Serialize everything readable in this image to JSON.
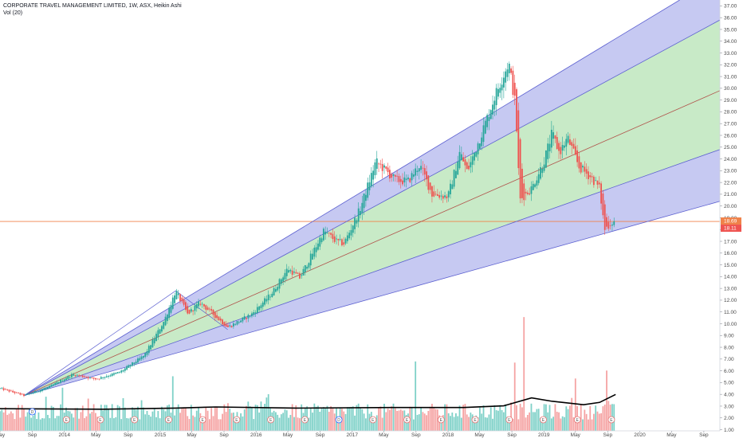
{
  "legend": {
    "title": "CORPORATE TRAVEL MANAGEMENT LIMITED, 1W, ASX, Heikin Ashi",
    "indicator": "Vol (20)"
  },
  "colors": {
    "up": "#26a69a",
    "down": "#ef5350",
    "outer_band": "#b3b7ee",
    "inner_band": "#c8ecc4",
    "fan_line": "#5b5fd0",
    "median_line": "#b0524a",
    "price_line": "#f0824a",
    "volume_up": "#7fd1c8",
    "volume_down": "#f5a3a3",
    "volume_ma": "#000000"
  },
  "price_tags": {
    "last": "18.69",
    "close": "18.11"
  },
  "event_markers": [
    "D",
    "E",
    "E",
    "E",
    "E",
    "E",
    "E",
    "E",
    "E",
    "D",
    "E",
    "E",
    "E",
    "E",
    "E",
    "E",
    "E",
    "E"
  ],
  "chart_data": {
    "type": "candlestick",
    "title": "CORPORATE TRAVEL MANAGEMENT LIMITED, 1W, ASX, Heikin Ashi",
    "x_axis": {
      "type": "date",
      "range": [
        "2013-05-01",
        "2020-11-01"
      ],
      "tick_labels": [
        "May",
        "Sep",
        "2014",
        "May",
        "Sep",
        "2015",
        "May",
        "Sep",
        "2016",
        "May",
        "Sep",
        "2017",
        "May",
        "Sep",
        "2018",
        "May",
        "Sep",
        "2019",
        "May",
        "Sep",
        "2020",
        "May",
        "Sep"
      ],
      "tick_dates": [
        "2013-05-01",
        "2013-09-01",
        "2014-01-01",
        "2014-05-01",
        "2014-09-01",
        "2015-01-01",
        "2015-05-01",
        "2015-09-01",
        "2016-01-01",
        "2016-05-01",
        "2016-09-01",
        "2017-01-01",
        "2017-05-01",
        "2017-09-01",
        "2018-01-01",
        "2018-05-01",
        "2018-09-01",
        "2019-01-01",
        "2019-05-01",
        "2019-09-01",
        "2020-01-01",
        "2020-05-01",
        "2020-09-01"
      ]
    },
    "y_axis": {
      "range": [
        0.9,
        37.5
      ],
      "tick_labels": [
        "1.00",
        "2.00",
        "3.00",
        "4.00",
        "5.00",
        "6.00",
        "7.00",
        "8.00",
        "9.00",
        "10.00",
        "11.00",
        "12.00",
        "13.00",
        "14.00",
        "15.00",
        "16.00",
        "17.00",
        "18.00",
        "19.00",
        "20.00",
        "21.00",
        "22.00",
        "23.00",
        "24.00",
        "25.00",
        "26.00",
        "27.00",
        "28.00",
        "29.00",
        "30.00",
        "31.00",
        "32.00",
        "33.00",
        "34.00",
        "35.00",
        "36.00",
        "37.00"
      ],
      "tick_values": [
        1,
        2,
        3,
        4,
        5,
        6,
        7,
        8,
        9,
        10,
        11,
        12,
        13,
        14,
        15,
        16,
        17,
        18,
        19,
        20,
        21,
        22,
        23,
        24,
        25,
        26,
        27,
        28,
        29,
        30,
        31,
        32,
        33,
        34,
        35,
        36,
        37
      ]
    },
    "price_path": [
      {
        "date": "2013-05-01",
        "price": 4.5
      },
      {
        "date": "2013-08-01",
        "price": 3.9
      },
      {
        "date": "2013-11-01",
        "price": 4.6
      },
      {
        "date": "2014-02-01",
        "price": 5.7
      },
      {
        "date": "2014-05-01",
        "price": 5.3
      },
      {
        "date": "2014-08-01",
        "price": 5.9
      },
      {
        "date": "2014-11-01",
        "price": 7.3
      },
      {
        "date": "2015-01-15",
        "price": 10.2
      },
      {
        "date": "2015-03-01",
        "price": 12.8
      },
      {
        "date": "2015-04-15",
        "price": 10.8
      },
      {
        "date": "2015-06-01",
        "price": 11.8
      },
      {
        "date": "2015-09-15",
        "price": 9.7
      },
      {
        "date": "2015-12-15",
        "price": 10.8
      },
      {
        "date": "2016-03-01",
        "price": 12.6
      },
      {
        "date": "2016-05-01",
        "price": 14.7
      },
      {
        "date": "2016-06-15",
        "price": 13.9
      },
      {
        "date": "2016-08-01",
        "price": 15.9
      },
      {
        "date": "2016-09-15",
        "price": 17.9
      },
      {
        "date": "2016-11-01",
        "price": 17.0
      },
      {
        "date": "2016-12-01",
        "price": 16.8
      },
      {
        "date": "2017-02-01",
        "price": 19.8
      },
      {
        "date": "2017-04-01",
        "price": 23.8
      },
      {
        "date": "2017-06-15",
        "price": 22.2
      },
      {
        "date": "2017-08-01",
        "price": 22.1
      },
      {
        "date": "2017-09-15",
        "price": 23.5
      },
      {
        "date": "2017-11-01",
        "price": 21.0
      },
      {
        "date": "2018-01-01",
        "price": 20.8
      },
      {
        "date": "2018-02-15",
        "price": 24.6
      },
      {
        "date": "2018-03-15",
        "price": 22.9
      },
      {
        "date": "2018-05-01",
        "price": 25.7
      },
      {
        "date": "2018-07-01",
        "price": 29.5
      },
      {
        "date": "2018-08-20",
        "price": 32.2
      },
      {
        "date": "2018-09-15",
        "price": 28.5
      },
      {
        "date": "2018-10-01",
        "price": 20.5
      },
      {
        "date": "2018-11-15",
        "price": 21.5
      },
      {
        "date": "2019-01-01",
        "price": 23.8
      },
      {
        "date": "2019-02-01",
        "price": 26.2
      },
      {
        "date": "2019-03-01",
        "price": 24.5
      },
      {
        "date": "2019-04-01",
        "price": 25.8
      },
      {
        "date": "2019-05-15",
        "price": 23.3
      },
      {
        "date": "2019-07-01",
        "price": 22.4
      },
      {
        "date": "2019-08-01",
        "price": 21.5
      },
      {
        "date": "2019-08-20",
        "price": 18.0
      },
      {
        "date": "2019-09-15",
        "price": 18.6
      },
      {
        "date": "2019-10-01",
        "price": 18.7
      }
    ],
    "gann_fan": {
      "origin": {
        "date": "2013-08-01",
        "price": 3.9
      },
      "lines": [
        {
          "role": "outer-upper",
          "end": {
            "date": "2020-06-01",
            "price": 37.5
          }
        },
        {
          "role": "inner-upper",
          "end": {
            "date": "2020-11-01",
            "price": 35.8
          }
        },
        {
          "role": "median",
          "end": {
            "date": "2020-11-01",
            "price": 29.8
          }
        },
        {
          "role": "inner-lower",
          "end": {
            "date": "2020-11-01",
            "price": 24.8
          }
        },
        {
          "role": "outer-lower",
          "end": {
            "date": "2020-11-01",
            "price": 20.4
          }
        }
      ]
    },
    "pivot_path": [
      {
        "date": "2013-08-01",
        "price": 3.9
      },
      {
        "date": "2015-03-01",
        "price": 12.8
      },
      {
        "date": "2015-09-15",
        "price": 9.5
      }
    ],
    "horizontal_line": {
      "price": 18.69
    },
    "volume": {
      "label": "Vol (20)",
      "scale_max": 10.5,
      "base": 1.0,
      "ma_path": [
        {
          "date": "2013-05-01",
          "value": 1.95
        },
        {
          "date": "2014-06-01",
          "value": 1.9
        },
        {
          "date": "2015-03-01",
          "value": 2.0
        },
        {
          "date": "2015-08-01",
          "value": 2.1
        },
        {
          "date": "2016-06-01",
          "value": 2.0
        },
        {
          "date": "2017-06-01",
          "value": 2.05
        },
        {
          "date": "2018-03-01",
          "value": 2.05
        },
        {
          "date": "2018-08-01",
          "value": 2.2
        },
        {
          "date": "2018-11-15",
          "value": 2.9
        },
        {
          "date": "2019-02-01",
          "value": 2.6
        },
        {
          "date": "2019-06-01",
          "value": 2.3
        },
        {
          "date": "2019-08-01",
          "value": 2.5
        },
        {
          "date": "2019-10-01",
          "value": 3.2
        }
      ],
      "spikes": [
        {
          "date": "2015-02-15",
          "value": 4.8
        },
        {
          "date": "2017-09-01",
          "value": 6.1
        },
        {
          "date": "2018-09-10",
          "value": 6.0
        },
        {
          "date": "2018-10-15",
          "value": 10.0
        },
        {
          "date": "2019-05-01",
          "value": 4.6
        },
        {
          "date": "2019-08-25",
          "value": 5.3
        }
      ]
    }
  }
}
